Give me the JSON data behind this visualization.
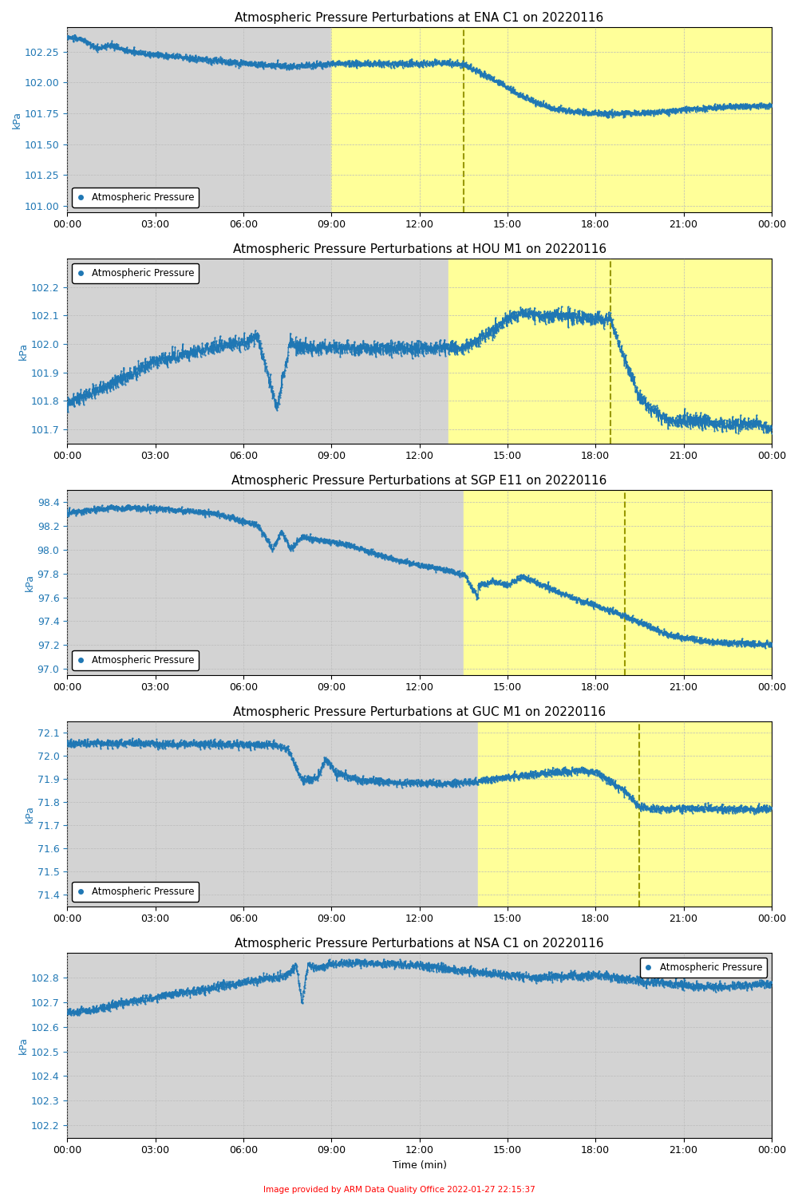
{
  "plots": [
    {
      "title": "Atmospheric Pressure Perturbations at ENA C1 on 20220116",
      "site": "ENA C1",
      "ylabel": "kPa",
      "ylim": [
        100.95,
        102.45
      ],
      "yticks": [
        101.0,
        101.25,
        101.5,
        101.75,
        102.0,
        102.25
      ],
      "highlight_start": 9.0,
      "highlight_end": 24.0,
      "dashed_line_x": 13.5,
      "legend_loc": "lower left"
    },
    {
      "title": "Atmospheric Pressure Perturbations at HOU M1 on 20220116",
      "site": "HOU M1",
      "ylabel": "kPa",
      "ylim": [
        101.65,
        102.3
      ],
      "yticks": [
        101.7,
        101.8,
        101.9,
        102.0,
        102.1,
        102.2
      ],
      "highlight_start": 13.0,
      "highlight_end": 24.0,
      "dashed_line_x": 18.5,
      "legend_loc": "upper left"
    },
    {
      "title": "Atmospheric Pressure Perturbations at SGP E11 on 20220116",
      "site": "SGP E11",
      "ylabel": "kPa",
      "ylim": [
        96.95,
        98.5
      ],
      "yticks": [
        97.0,
        97.2,
        97.4,
        97.6,
        97.8,
        98.0,
        98.2,
        98.4
      ],
      "highlight_start": 13.5,
      "highlight_end": 24.0,
      "dashed_line_x": 19.0,
      "legend_loc": "lower left"
    },
    {
      "title": "Atmospheric Pressure Perturbations at GUC M1 on 20220116",
      "site": "GUC M1",
      "ylabel": "kPa",
      "ylim": [
        71.35,
        72.15
      ],
      "yticks": [
        71.4,
        71.5,
        71.6,
        71.7,
        71.8,
        71.9,
        72.0,
        72.1
      ],
      "highlight_start": 14.0,
      "highlight_end": 24.0,
      "dashed_line_x": 19.5,
      "legend_loc": "lower left"
    },
    {
      "title": "Atmospheric Pressure Perturbations at NSA C1 on 20220116",
      "site": "NSA C1",
      "ylabel": "kPa",
      "ylim": [
        102.15,
        102.9
      ],
      "yticks": [
        102.2,
        102.3,
        102.4,
        102.5,
        102.6,
        102.7,
        102.8
      ],
      "highlight_start": null,
      "highlight_end": null,
      "dashed_line_x": null,
      "legend_loc": "upper right"
    }
  ],
  "line_color": "#1f77b4",
  "highlight_color": "#ffff99",
  "highlight_alpha": 1.0,
  "dashed_line_color": "#999900",
  "bg_gray": "#d3d3d3",
  "xlabel": "Time (min)",
  "footer_text": "Image provided by ARM Data Quality Office 2022-01-27 22:15:37",
  "footer_color": "#ff0000",
  "xticks": [
    0,
    3,
    6,
    9,
    12,
    15,
    18,
    21,
    24
  ],
  "xticklabels": [
    "00:00",
    "03:00",
    "06:00",
    "09:00",
    "12:00",
    "15:00",
    "18:00",
    "21:00",
    "00:00"
  ]
}
